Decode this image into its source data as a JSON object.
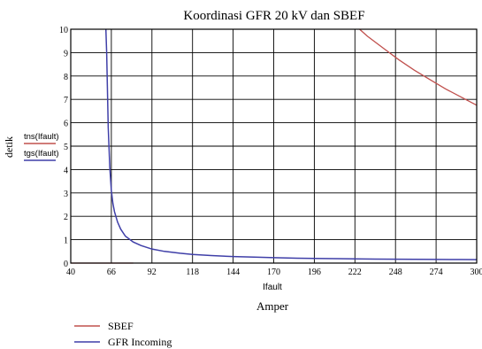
{
  "chart_data": {
    "type": "line",
    "title": "Koordinasi GFR 20 kV dan SBEF",
    "xlabel_var": "Ifault",
    "xlabel_unit": "Amper",
    "ylabel": "detik",
    "ylabel_vars": [
      "tns(Ifault)",
      "tgs(Ifault)"
    ],
    "xlim": [
      40,
      300
    ],
    "ylim": [
      0,
      10
    ],
    "x_ticks": [
      40,
      66,
      92,
      118,
      144,
      170,
      196,
      222,
      248,
      274,
      300
    ],
    "x_tick_labels": [
      "40",
      "66",
      "92",
      "118",
      "144",
      "170",
      "196",
      "222",
      "248",
      "274",
      "300"
    ],
    "y_ticks": [
      0,
      1,
      2,
      3,
      4,
      5,
      6,
      7,
      8,
      9,
      10
    ],
    "y_tick_labels": [
      "0",
      "1",
      "2",
      "3",
      "4",
      "5",
      "6",
      "7",
      "8",
      "9",
      "10"
    ],
    "grid": true,
    "legend_placement": "bottom-left",
    "series": [
      {
        "name": "SBEF",
        "color": "#c0504d",
        "x": [
          40,
          60,
          70,
          80,
          225,
          230,
          240,
          250,
          260,
          270,
          280,
          290,
          300
        ],
        "y": [
          0,
          0,
          0,
          0,
          10.0,
          9.7,
          9.2,
          8.7,
          8.25,
          7.85,
          7.45,
          7.1,
          6.75
        ]
      },
      {
        "name": "GFR Incoming",
        "color": "#3f3fa8",
        "x": [
          62.5,
          63,
          63.5,
          64,
          65,
          66,
          67,
          68,
          70,
          72,
          75,
          80,
          85,
          92,
          100,
          110,
          118,
          130,
          144,
          160,
          170,
          185,
          196,
          210,
          222,
          235,
          248,
          260,
          274,
          290,
          300
        ],
        "y": [
          10.0,
          9.0,
          7.4,
          5.8,
          4.1,
          3.1,
          2.55,
          2.2,
          1.75,
          1.45,
          1.15,
          0.9,
          0.75,
          0.6,
          0.5,
          0.42,
          0.37,
          0.32,
          0.28,
          0.25,
          0.23,
          0.21,
          0.2,
          0.19,
          0.18,
          0.17,
          0.165,
          0.16,
          0.155,
          0.15,
          0.145
        ]
      }
    ]
  }
}
